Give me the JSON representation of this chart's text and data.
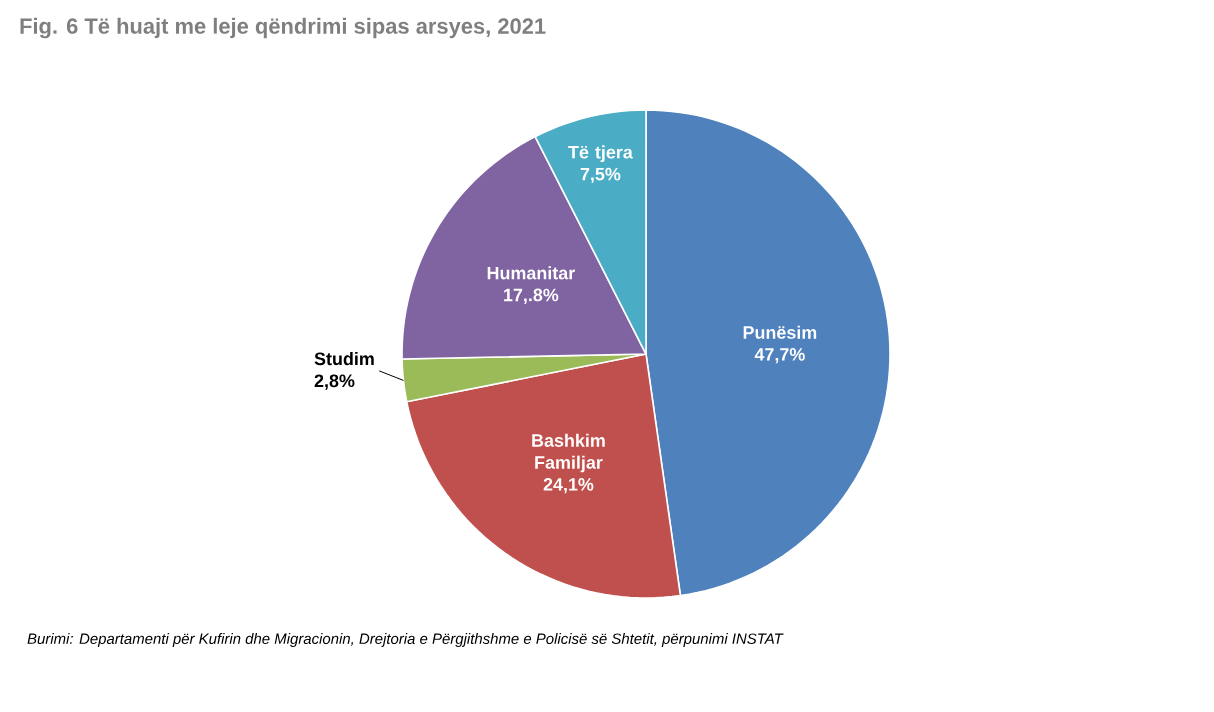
{
  "chart_data": {
    "type": "pie",
    "title": "Fig. 6 Të huajt me leje qëndrimi sipas arsyes, 2021",
    "categories": [
      "Punësim",
      "Bashkim Familjar",
      "Studim",
      "Humanitar",
      "Të tjera"
    ],
    "values": [
      47.7,
      24.1,
      2.8,
      17.8,
      7.5
    ],
    "value_labels": [
      "47,7%",
      "24,1%",
      "2,8%",
      "17,.8%",
      "7,5%"
    ],
    "colors": [
      "#4f81bd",
      "#c0504d",
      "#9bbb59",
      "#8064a2",
      "#4bacc6"
    ],
    "annotations": [
      "Burimi: Departamenti për Kufirin dhe Migracionin, Drejtoria e Përgjithshme e Policisë së Shtetit,  përpunimi INSTAT"
    ]
  }
}
